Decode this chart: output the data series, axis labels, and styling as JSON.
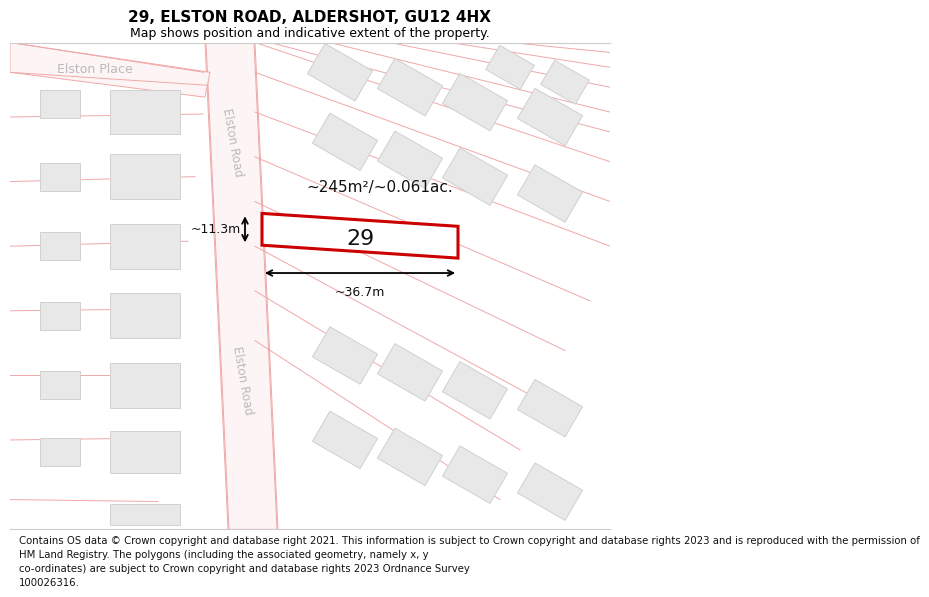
{
  "title": "29, ELSTON ROAD, ALDERSHOT, GU12 4HX",
  "subtitle": "Map shows position and indicative extent of the property.",
  "footer": "Contains OS data © Crown copyright and database right 2021. This information is subject to Crown copyright and database rights 2023 and is reproduced with the permission of\nHM Land Registry. The polygons (including the associated geometry, namely x, y\nco-ordinates) are subject to Crown copyright and database rights 2023 Ordnance Survey\n100026316.",
  "area_text": "~245m²/~0.061ac.",
  "width_text": "~36.7m",
  "height_text": "~11.3m",
  "number_text": "29",
  "bg_color": "#ffffff",
  "map_bg": "#ffffff",
  "road_color": "#f0a8a8",
  "road_fill": "#fdf5f5",
  "building_fill": "#e8e8e8",
  "building_edge": "#d0d0d0",
  "highlight_fill": "#ffffff",
  "highlight_edge": "#cc0000",
  "road_label_color": "#bbbbbb",
  "dim_color": "#111111",
  "title_fontsize": 11,
  "subtitle_fontsize": 9,
  "footer_fontsize": 7.3
}
